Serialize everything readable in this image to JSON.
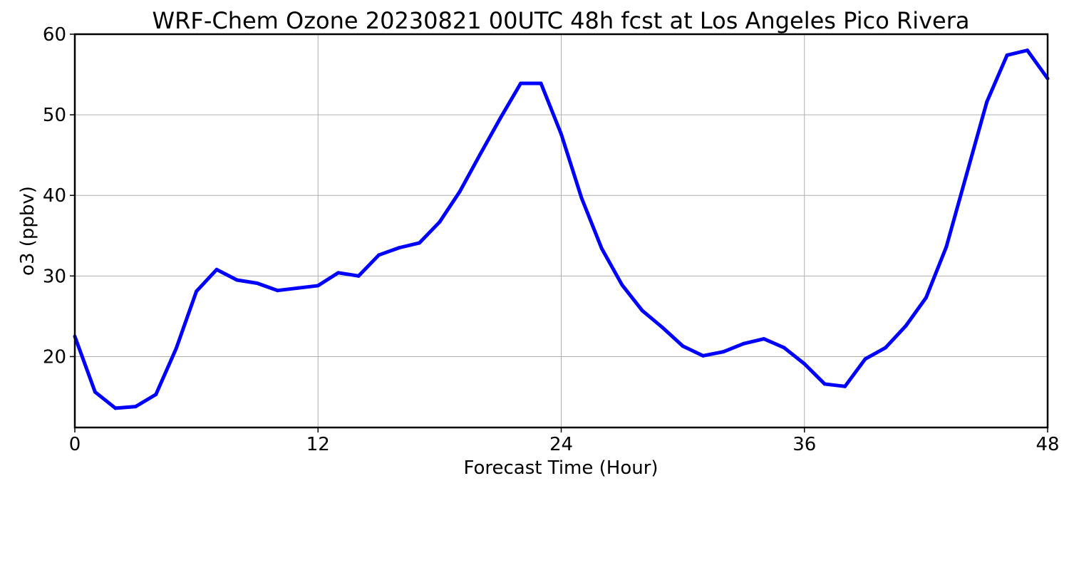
{
  "chart_data": {
    "type": "line",
    "title": "WRF-Chem Ozone  20230821 00UTC 48h fcst at Los Angeles Pico Rivera",
    "xlabel": "Forecast Time (Hour)",
    "ylabel": "o3  (ppbv)",
    "xlim": [
      0,
      48
    ],
    "ylim": [
      11.2,
      60
    ],
    "xticks": [
      0,
      12,
      24,
      36,
      48
    ],
    "yticks": [
      20,
      30,
      40,
      50,
      60
    ],
    "grid": true,
    "line_color": "#0000ff",
    "series": [
      {
        "x": [
          0,
          1,
          2,
          3,
          4,
          5,
          6,
          7,
          8,
          9,
          10,
          11,
          12,
          13,
          14,
          15,
          16,
          17,
          18,
          19,
          20,
          21,
          22,
          23,
          24,
          25,
          26,
          27,
          28,
          29,
          30,
          31,
          32,
          33,
          34,
          35,
          36,
          37,
          38,
          39,
          40,
          41,
          42,
          43,
          44,
          45,
          46,
          47,
          48
        ],
        "values": [
          22.5,
          15.6,
          13.6,
          13.8,
          15.3,
          21.0,
          28.1,
          30.8,
          29.5,
          29.1,
          28.2,
          28.5,
          28.8,
          30.4,
          30.0,
          32.6,
          33.5,
          34.1,
          36.7,
          40.5,
          45.1,
          49.6,
          53.9,
          53.9,
          47.6,
          39.7,
          33.4,
          28.9,
          25.7,
          23.6,
          21.3,
          20.1,
          20.6,
          21.6,
          22.2,
          21.1,
          19.1,
          16.6,
          16.3,
          19.7,
          21.1,
          23.8,
          27.3,
          33.6,
          42.6,
          51.6,
          57.4,
          58.0,
          54.5
        ]
      }
    ]
  }
}
